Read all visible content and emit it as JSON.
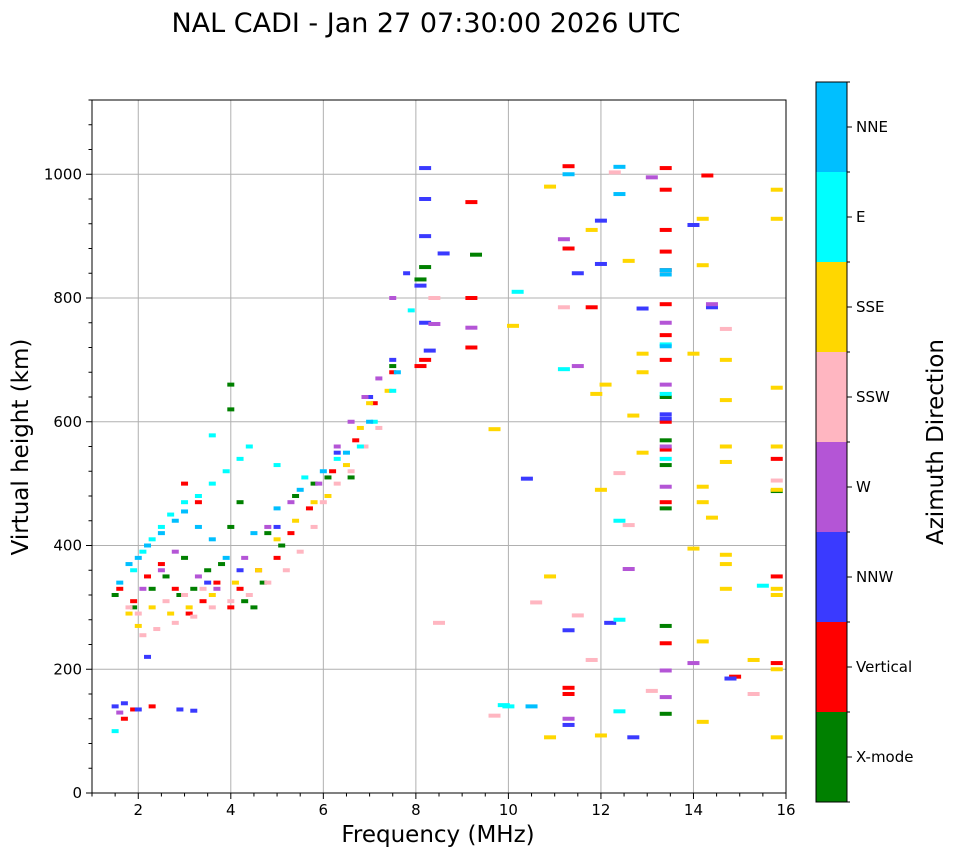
{
  "chart_data": {
    "type": "scatter",
    "title": "NAL CADI - Jan 27 07:30:00 2026 UTC",
    "xlabel": "Frequency (MHz)",
    "ylabel": "Virtual height (km)",
    "xlim": [
      1,
      16
    ],
    "ylim": [
      0,
      1120
    ],
    "xticks": [
      2,
      4,
      6,
      8,
      10,
      12,
      14,
      16
    ],
    "xtick_labels": [
      "2",
      "4",
      "6",
      "8",
      "10",
      "12",
      "14",
      "16"
    ],
    "yticks": [
      0,
      200,
      400,
      600,
      800,
      1000
    ],
    "ytick_labels": [
      "0",
      "200",
      "400",
      "600",
      "800",
      "1000"
    ],
    "grid": true,
    "colorbar": {
      "label": "Azimuth Direction",
      "categories": [
        "X-mode",
        "Vertical",
        "NNW",
        "W",
        "SSW",
        "SSE",
        "E",
        "NNE"
      ],
      "colors": [
        "#008000",
        "#ff0000",
        "#3a3aff",
        "#b455d6",
        "#ffb6c1",
        "#ffd700",
        "#00ffff",
        "#00bfff"
      ]
    },
    "series": [
      {
        "name": "X-mode",
        "points": [
          [
            1.5,
            320
          ],
          [
            1.9,
            300
          ],
          [
            2.3,
            330
          ],
          [
            2.6,
            350
          ],
          [
            2.9,
            320
          ],
          [
            3.2,
            330
          ],
          [
            3.5,
            360
          ],
          [
            3.8,
            370
          ],
          [
            4.0,
            660
          ],
          [
            4.0,
            620
          ],
          [
            4.0,
            430
          ],
          [
            4.2,
            470
          ],
          [
            4.5,
            300
          ],
          [
            4.8,
            420
          ],
          [
            5.1,
            400
          ],
          [
            5.4,
            480
          ],
          [
            5.8,
            500
          ],
          [
            6.1,
            510
          ],
          [
            6.6,
            510
          ],
          [
            7.5,
            690
          ],
          [
            8.1,
            830
          ],
          [
            8.2,
            850
          ],
          [
            9.3,
            870
          ],
          [
            13.4,
            460
          ],
          [
            13.4,
            530
          ],
          [
            13.4,
            570
          ],
          [
            13.4,
            640
          ],
          [
            13.4,
            270
          ],
          [
            13.4,
            128
          ],
          [
            15.8,
            488
          ],
          [
            4.3,
            310
          ],
          [
            4.7,
            340
          ],
          [
            3.0,
            380
          ]
        ]
      },
      {
        "name": "Vertical",
        "points": [
          [
            1.6,
            330
          ],
          [
            1.9,
            310
          ],
          [
            2.2,
            350
          ],
          [
            2.5,
            370
          ],
          [
            2.8,
            330
          ],
          [
            3.1,
            290
          ],
          [
            3.4,
            310
          ],
          [
            3.7,
            340
          ],
          [
            4.0,
            300
          ],
          [
            4.2,
            330
          ],
          [
            4.6,
            360
          ],
          [
            5.0,
            380
          ],
          [
            5.3,
            420
          ],
          [
            5.7,
            460
          ],
          [
            6.2,
            520
          ],
          [
            6.7,
            570
          ],
          [
            7.1,
            630
          ],
          [
            7.5,
            680
          ],
          [
            8.1,
            690
          ],
          [
            8.2,
            700
          ],
          [
            9.2,
            800
          ],
          [
            9.2,
            955
          ],
          [
            9.2,
            720
          ],
          [
            11.3,
            1013
          ],
          [
            11.3,
            880
          ],
          [
            11.3,
            170
          ],
          [
            11.3,
            160
          ],
          [
            11.8,
            785
          ],
          [
            13.4,
            1010
          ],
          [
            13.4,
            975
          ],
          [
            13.4,
            910
          ],
          [
            13.4,
            875
          ],
          [
            13.4,
            845
          ],
          [
            13.4,
            790
          ],
          [
            13.4,
            740
          ],
          [
            13.4,
            700
          ],
          [
            13.4,
            600
          ],
          [
            13.4,
            555
          ],
          [
            13.4,
            470
          ],
          [
            13.4,
            242
          ],
          [
            14.3,
            998
          ],
          [
            14.9,
            188
          ],
          [
            15.8,
            540
          ],
          [
            15.8,
            350
          ],
          [
            15.8,
            210
          ],
          [
            1.7,
            120
          ],
          [
            1.9,
            135
          ],
          [
            2.3,
            140
          ],
          [
            3.0,
            500
          ],
          [
            3.3,
            470
          ]
        ]
      },
      {
        "name": "NNW",
        "points": [
          [
            1.5,
            140
          ],
          [
            1.7,
            145
          ],
          [
            2.0,
            135
          ],
          [
            2.2,
            220
          ],
          [
            2.9,
            135
          ],
          [
            3.5,
            340
          ],
          [
            4.2,
            360
          ],
          [
            5.0,
            430
          ],
          [
            6.3,
            550
          ],
          [
            7.0,
            640
          ],
          [
            7.5,
            700
          ],
          [
            7.8,
            840
          ],
          [
            8.1,
            820
          ],
          [
            8.2,
            1010
          ],
          [
            8.2,
            960
          ],
          [
            8.2,
            900
          ],
          [
            8.2,
            760
          ],
          [
            8.3,
            715
          ],
          [
            8.6,
            872
          ],
          [
            10.4,
            508
          ],
          [
            11.3,
            263
          ],
          [
            11.3,
            110
          ],
          [
            11.5,
            840
          ],
          [
            12.0,
            925
          ],
          [
            12.0,
            855
          ],
          [
            12.2,
            275
          ],
          [
            12.7,
            90
          ],
          [
            12.9,
            783
          ],
          [
            13.4,
            612
          ],
          [
            13.4,
            605
          ],
          [
            14.0,
            918
          ],
          [
            14.4,
            785
          ],
          [
            14.8,
            185
          ],
          [
            3.2,
            133
          ]
        ]
      },
      {
        "name": "W",
        "points": [
          [
            1.6,
            130
          ],
          [
            2.1,
            330
          ],
          [
            2.5,
            360
          ],
          [
            2.8,
            390
          ],
          [
            3.3,
            350
          ],
          [
            3.7,
            330
          ],
          [
            4.3,
            380
          ],
          [
            4.8,
            430
          ],
          [
            5.3,
            470
          ],
          [
            5.9,
            500
          ],
          [
            6.3,
            560
          ],
          [
            6.6,
            600
          ],
          [
            6.9,
            640
          ],
          [
            7.2,
            670
          ],
          [
            7.5,
            800
          ],
          [
            8.4,
            758
          ],
          [
            9.2,
            752
          ],
          [
            11.2,
            895
          ],
          [
            11.5,
            690
          ],
          [
            12.6,
            362
          ],
          [
            13.1,
            995
          ],
          [
            13.4,
            760
          ],
          [
            13.4,
            660
          ],
          [
            13.4,
            560
          ],
          [
            13.4,
            495
          ],
          [
            13.4,
            198
          ],
          [
            13.4,
            155
          ],
          [
            14.0,
            210
          ],
          [
            14.4,
            790
          ],
          [
            11.3,
            120
          ]
        ]
      },
      {
        "name": "SSW",
        "points": [
          [
            2.1,
            255
          ],
          [
            2.4,
            265
          ],
          [
            2.8,
            275
          ],
          [
            3.2,
            285
          ],
          [
            3.6,
            300
          ],
          [
            4.0,
            310
          ],
          [
            4.4,
            320
          ],
          [
            4.8,
            340
          ],
          [
            5.2,
            360
          ],
          [
            5.5,
            390
          ],
          [
            5.8,
            430
          ],
          [
            6.0,
            470
          ],
          [
            6.3,
            500
          ],
          [
            6.6,
            520
          ],
          [
            6.9,
            560
          ],
          [
            7.2,
            590
          ],
          [
            8.4,
            800
          ],
          [
            8.5,
            275
          ],
          [
            9.7,
            125
          ],
          [
            10.6,
            308
          ],
          [
            11.2,
            785
          ],
          [
            11.5,
            287
          ],
          [
            11.8,
            215
          ],
          [
            12.3,
            1003
          ],
          [
            12.4,
            517
          ],
          [
            12.6,
            433
          ],
          [
            13.1,
            165
          ],
          [
            14.7,
            750
          ],
          [
            15.3,
            160
          ],
          [
            15.8,
            505
          ],
          [
            1.8,
            300
          ],
          [
            2.0,
            290
          ],
          [
            2.6,
            310
          ],
          [
            3.0,
            320
          ],
          [
            3.4,
            330
          ]
        ]
      },
      {
        "name": "SSE",
        "points": [
          [
            1.8,
            290
          ],
          [
            2.0,
            270
          ],
          [
            2.3,
            300
          ],
          [
            2.7,
            290
          ],
          [
            3.1,
            300
          ],
          [
            3.6,
            320
          ],
          [
            4.1,
            340
          ],
          [
            4.6,
            360
          ],
          [
            5.0,
            410
          ],
          [
            5.4,
            440
          ],
          [
            5.8,
            470
          ],
          [
            6.1,
            480
          ],
          [
            6.5,
            530
          ],
          [
            6.8,
            590
          ],
          [
            7.0,
            630
          ],
          [
            7.4,
            650
          ],
          [
            10.1,
            755
          ],
          [
            10.9,
            980
          ],
          [
            10.9,
            350
          ],
          [
            10.9,
            90
          ],
          [
            11.8,
            910
          ],
          [
            11.9,
            645
          ],
          [
            12.0,
            490
          ],
          [
            12.0,
            93
          ],
          [
            12.1,
            660
          ],
          [
            12.6,
            860
          ],
          [
            12.7,
            610
          ],
          [
            12.9,
            710
          ],
          [
            12.9,
            680
          ],
          [
            12.9,
            550
          ],
          [
            14.0,
            710
          ],
          [
            14.2,
            928
          ],
          [
            14.2,
            853
          ],
          [
            14.2,
            495
          ],
          [
            14.2,
            470
          ],
          [
            14.2,
            245
          ],
          [
            14.2,
            115
          ],
          [
            14.4,
            445
          ],
          [
            14.7,
            700
          ],
          [
            14.7,
            635
          ],
          [
            14.7,
            560
          ],
          [
            14.7,
            535
          ],
          [
            14.7,
            385
          ],
          [
            14.7,
            370
          ],
          [
            14.7,
            330
          ],
          [
            15.3,
            215
          ],
          [
            15.8,
            975
          ],
          [
            15.8,
            928
          ],
          [
            15.8,
            655
          ],
          [
            15.8,
            560
          ],
          [
            15.8,
            490
          ],
          [
            15.8,
            330
          ],
          [
            15.8,
            320
          ],
          [
            15.8,
            200
          ],
          [
            15.8,
            90
          ],
          [
            14.0,
            395
          ],
          [
            9.7,
            588
          ]
        ]
      },
      {
        "name": "E",
        "points": [
          [
            1.5,
            100
          ],
          [
            1.9,
            360
          ],
          [
            2.1,
            390
          ],
          [
            2.3,
            410
          ],
          [
            2.5,
            430
          ],
          [
            2.7,
            450
          ],
          [
            3.0,
            470
          ],
          [
            3.3,
            480
          ],
          [
            3.6,
            500
          ],
          [
            3.9,
            520
          ],
          [
            4.2,
            540
          ],
          [
            4.4,
            560
          ],
          [
            5.0,
            530
          ],
          [
            5.6,
            510
          ],
          [
            6.3,
            540
          ],
          [
            6.8,
            560
          ],
          [
            7.1,
            600
          ],
          [
            7.5,
            650
          ],
          [
            7.9,
            780
          ],
          [
            10.2,
            810
          ],
          [
            11.2,
            685
          ],
          [
            12.4,
            440
          ],
          [
            12.4,
            280
          ],
          [
            12.4,
            132
          ],
          [
            13.4,
            725
          ],
          [
            13.4,
            645
          ],
          [
            13.4,
            540
          ],
          [
            15.5,
            335
          ],
          [
            10.0,
            140
          ],
          [
            9.9,
            142
          ],
          [
            3.6,
            578
          ]
        ]
      },
      {
        "name": "NNE",
        "points": [
          [
            1.6,
            340
          ],
          [
            1.8,
            370
          ],
          [
            2.0,
            380
          ],
          [
            2.2,
            400
          ],
          [
            2.5,
            420
          ],
          [
            2.8,
            440
          ],
          [
            3.0,
            455
          ],
          [
            3.3,
            430
          ],
          [
            3.6,
            410
          ],
          [
            3.9,
            380
          ],
          [
            4.5,
            420
          ],
          [
            5.0,
            460
          ],
          [
            5.5,
            490
          ],
          [
            6.0,
            520
          ],
          [
            6.5,
            550
          ],
          [
            7.0,
            600
          ],
          [
            7.6,
            680
          ],
          [
            12.4,
            1012
          ],
          [
            12.4,
            968
          ],
          [
            13.4,
            845
          ],
          [
            13.4,
            838
          ],
          [
            13.4,
            722
          ],
          [
            11.3,
            1000
          ],
          [
            10.5,
            140
          ]
        ]
      }
    ]
  }
}
